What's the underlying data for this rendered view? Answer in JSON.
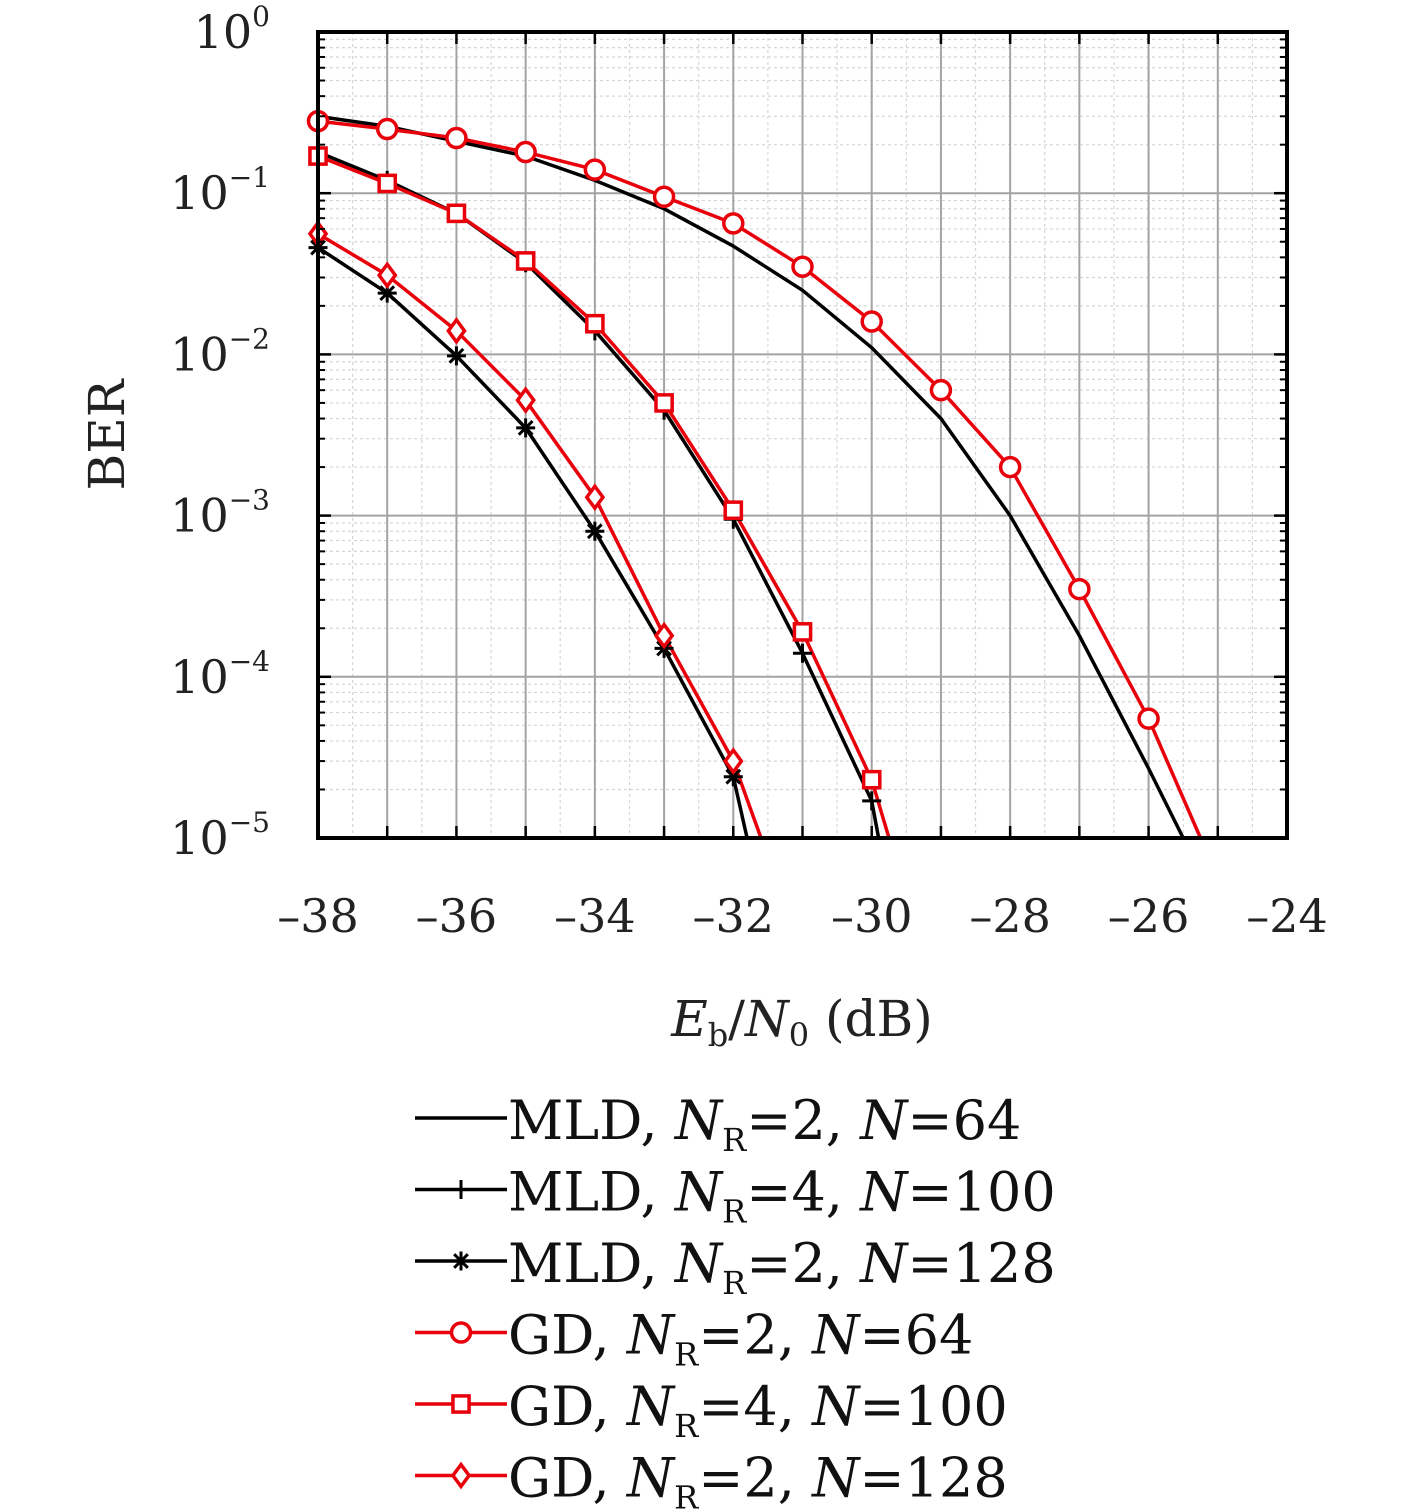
{
  "chart_data": {
    "type": "line",
    "xlabel": "Eb/N0 (dB)",
    "ylabel": "BER",
    "xlim": [
      -38,
      -24
    ],
    "ylim": [
      1e-05,
      1
    ],
    "yscale": "log",
    "grid": true,
    "legend_position": "below",
    "x_ticks": [
      "–38",
      "–36",
      "–34",
      "–32",
      "–30",
      "–28",
      "–26",
      "–24"
    ],
    "y_ticks": [
      {
        "base": "10",
        "exp": "0"
      },
      {
        "base": "10",
        "exp": "−1"
      },
      {
        "base": "10",
        "exp": "−2"
      },
      {
        "base": "10",
        "exp": "−3"
      },
      {
        "base": "10",
        "exp": "−4"
      },
      {
        "base": "10",
        "exp": "−5"
      }
    ],
    "series": [
      {
        "name": "MLD, NR=2, N=64",
        "method": "MLD",
        "nr": "2",
        "n": "64",
        "color": "#000000",
        "marker": "none",
        "x": [
          -38,
          -37,
          -36,
          -35,
          -34,
          -33,
          -32,
          -31,
          -30,
          -29,
          -28,
          -27,
          -26,
          -25.5
        ],
        "y": [
          0.3,
          0.26,
          0.21,
          0.17,
          0.12,
          0.08,
          0.047,
          0.025,
          0.011,
          0.004,
          0.001,
          0.00018,
          2.7e-05,
          1e-05
        ]
      },
      {
        "name": "MLD, NR=4, N=100",
        "method": "MLD",
        "nr": "4",
        "n": "100",
        "color": "#000000",
        "marker": "plus",
        "x": [
          -38,
          -37,
          -36,
          -35,
          -34,
          -33,
          -32,
          -31,
          -30,
          -29.9
        ],
        "y": [
          0.18,
          0.12,
          0.075,
          0.037,
          0.014,
          0.0045,
          0.00095,
          0.00014,
          1.7e-05,
          1e-05
        ]
      },
      {
        "name": "MLD, NR=2, N=128",
        "method": "MLD",
        "nr": "2",
        "n": "128",
        "color": "#000000",
        "marker": "star",
        "x": [
          -38,
          -37,
          -36,
          -35,
          -34,
          -33,
          -32,
          -31.8
        ],
        "y": [
          0.046,
          0.024,
          0.0098,
          0.0035,
          0.0008,
          0.00015,
          2.4e-05,
          1e-05
        ]
      },
      {
        "name": "GD, NR=2, N=64",
        "method": "GD",
        "nr": "2",
        "n": "64",
        "color": "#e8000b",
        "marker": "circle",
        "x": [
          -38,
          -37,
          -36,
          -35,
          -34,
          -33,
          -32,
          -31,
          -30,
          -29,
          -28,
          -27,
          -26,
          -25.25
        ],
        "y": [
          0.28,
          0.25,
          0.22,
          0.18,
          0.14,
          0.095,
          0.065,
          0.035,
          0.016,
          0.006,
          0.002,
          0.00035,
          5.5e-05,
          1e-05
        ]
      },
      {
        "name": "GD, NR=4, N=100",
        "method": "GD",
        "nr": "4",
        "n": "100",
        "color": "#e8000b",
        "marker": "square",
        "x": [
          -38,
          -37,
          -36,
          -35,
          -34,
          -33,
          -32,
          -31,
          -30,
          -29.75
        ],
        "y": [
          0.17,
          0.115,
          0.075,
          0.038,
          0.0155,
          0.005,
          0.00108,
          0.00019,
          2.3e-05,
          1e-05
        ]
      },
      {
        "name": "GD, NR=2, N=128",
        "method": "GD",
        "nr": "2",
        "n": "128",
        "color": "#e8000b",
        "marker": "diamond",
        "x": [
          -38,
          -37,
          -36,
          -35,
          -34,
          -33,
          -32,
          -31.6
        ],
        "y": [
          0.056,
          0.031,
          0.014,
          0.0052,
          0.0013,
          0.00018,
          3e-05,
          1e-05
        ]
      }
    ]
  }
}
